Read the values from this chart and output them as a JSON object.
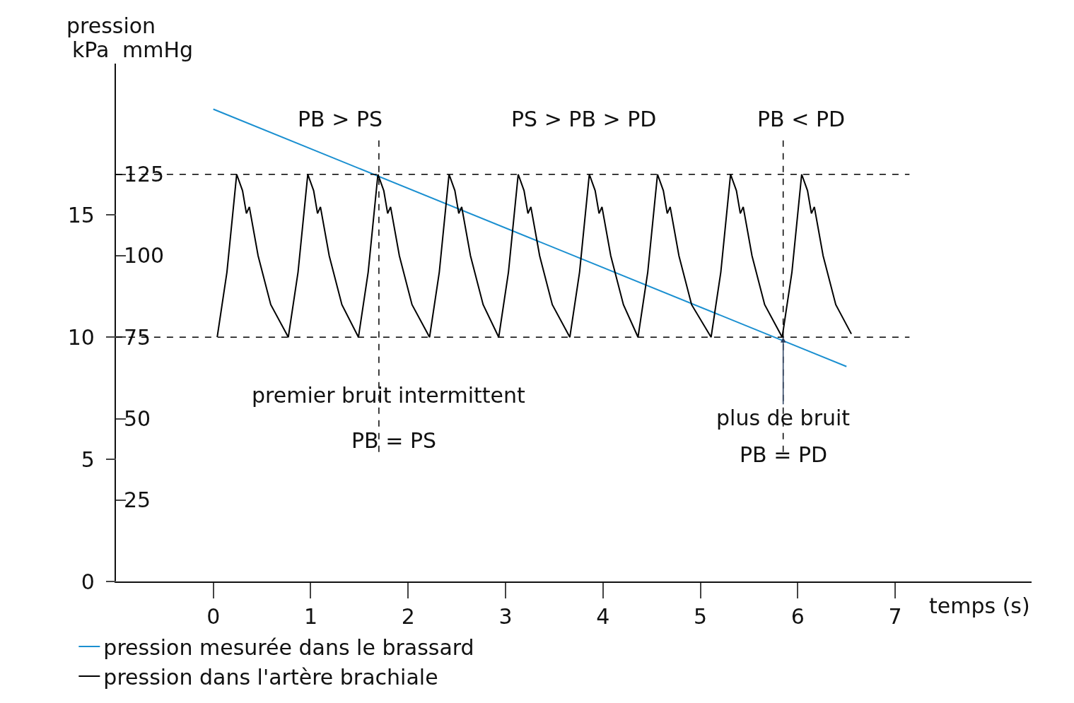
{
  "chart_data": {
    "type": "line",
    "title": "pression",
    "xlabel": "temps (s)",
    "ylabel": "mmHg",
    "y2label": "kPa",
    "xlim": [
      -1,
      8.4
    ],
    "xticks": [
      0,
      1,
      2,
      3,
      4,
      5,
      6,
      7
    ],
    "ylim": [
      0,
      159
    ],
    "yticks": [
      25,
      50,
      75,
      100,
      125
    ],
    "y2lim": [
      0,
      21.2
    ],
    "y2ticks": [
      0,
      5,
      10,
      15
    ],
    "legend": "bottom",
    "marker": "none",
    "series": [
      {
        "name": "pression mesurée dans le brassard",
        "color": "#1a8fd0",
        "x": [
          0,
          6.5
        ],
        "values": [
          145,
          66
        ]
      },
      {
        "name": "pression dans l'artère brachiale",
        "color": "#000000",
        "x": [
          0.04,
          0.14,
          0.24,
          0.3,
          0.34,
          0.37,
          0.46,
          0.59,
          0.77,
          0.87,
          0.97,
          1.03,
          1.07,
          1.1,
          1.19,
          1.32,
          1.49,
          1.59,
          1.69,
          1.75,
          1.79,
          1.82,
          1.91,
          2.04,
          2.22,
          2.32,
          2.42,
          2.48,
          2.52,
          2.55,
          2.64,
          2.77,
          2.93,
          3.03,
          3.13,
          3.19,
          3.23,
          3.26,
          3.35,
          3.48,
          3.66,
          3.76,
          3.86,
          3.92,
          3.96,
          3.99,
          4.08,
          4.21,
          4.36,
          4.46,
          4.56,
          4.62,
          4.66,
          4.69,
          4.78,
          4.91,
          5.11,
          5.21,
          5.31,
          5.37,
          5.41,
          5.44,
          5.53,
          5.66,
          5.84,
          5.94,
          6.04,
          6.1,
          6.14,
          6.17,
          6.26,
          6.39,
          6.55
        ],
        "values": [
          75,
          95,
          125,
          120,
          113,
          115,
          100,
          85,
          75,
          95,
          125,
          120,
          113,
          115,
          100,
          85,
          75,
          95,
          125,
          120,
          113,
          115,
          100,
          85,
          75,
          95,
          125,
          120,
          113,
          115,
          100,
          85,
          75,
          95,
          125,
          120,
          113,
          115,
          100,
          85,
          75,
          95,
          125,
          120,
          113,
          115,
          100,
          85,
          75,
          95,
          125,
          120,
          113,
          115,
          100,
          85,
          75,
          95,
          125,
          120,
          113,
          115,
          100,
          85,
          75,
          95,
          125,
          120,
          113,
          115,
          100,
          85,
          76
        ]
      }
    ],
    "ref_lines": [
      {
        "axis": "y",
        "value": 125,
        "line_style": "dashed",
        "color": "#000000"
      },
      {
        "axis": "y",
        "value": 75,
        "line_style": "dashed",
        "color": "#000000"
      },
      {
        "axis": "x",
        "value": 1.7,
        "line_style": "dashed",
        "color": "#000000"
      },
      {
        "axis": "x",
        "value": 5.85,
        "line_style": "dashed",
        "color": "#000000"
      }
    ],
    "annotations": [
      "PB > PS",
      "PS > PB > PD",
      "PB < PD",
      "premier bruit intermittent",
      "PB = PS",
      {
        "text": "plus de bruit",
        "x": 5.85,
        "y": 75
      },
      {
        "text": "PB = PD",
        "x": 5.85,
        "y": 39
      }
    ]
  }
}
